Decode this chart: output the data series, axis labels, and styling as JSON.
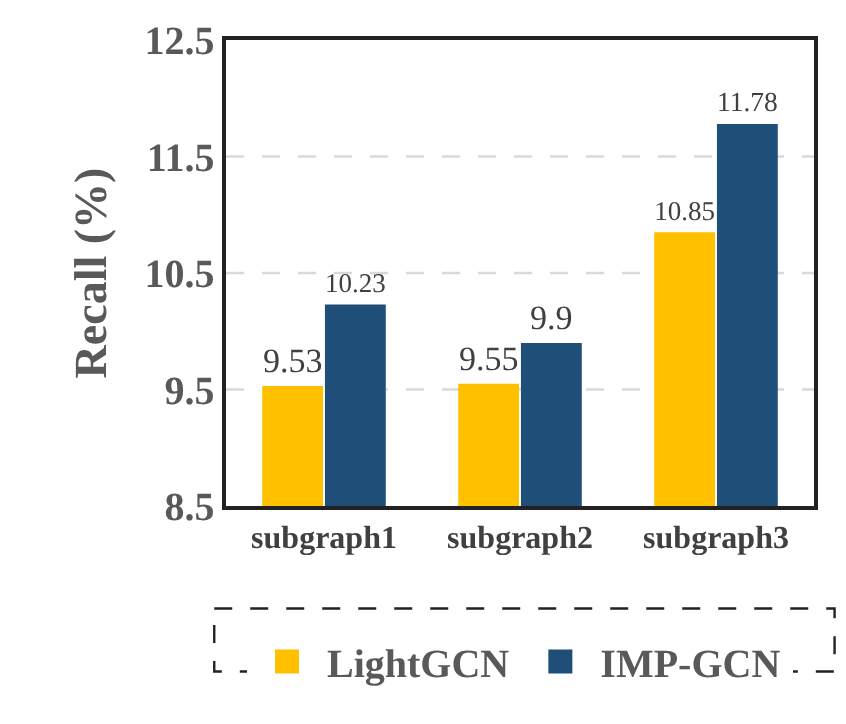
{
  "chart_data": {
    "type": "bar",
    "ylabel": "Recall (%)",
    "categories": [
      "subgraph1",
      "subgraph2",
      "subgraph3"
    ],
    "series": [
      {
        "name": "LightGCN",
        "color": "#ffc000",
        "values": [
          9.53,
          9.55,
          10.85
        ]
      },
      {
        "name": "IMP-GCN",
        "color": "#1f4e79",
        "values": [
          10.23,
          9.9,
          11.78
        ]
      }
    ],
    "ylim": [
      8.5,
      12.5
    ],
    "yticks": [
      "8.5",
      "9.5",
      "10.5",
      "11.5",
      "12.5"
    ],
    "grid": "y",
    "legend": "bottom",
    "data_labels": true
  }
}
